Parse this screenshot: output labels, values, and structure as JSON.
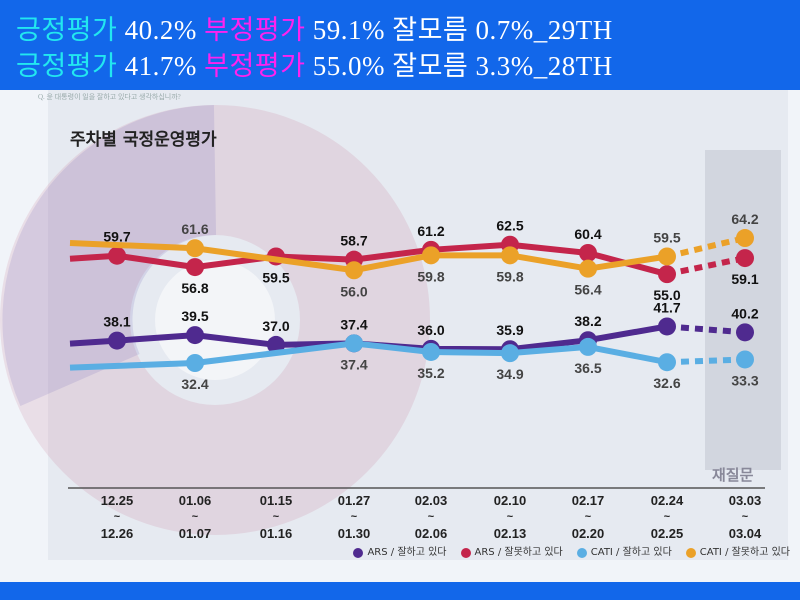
{
  "header": {
    "rows": [
      {
        "pos_label": "긍정평가",
        "pos_value": "40.2%",
        "neg_label": "부정평가",
        "neg_value": "59.1%",
        "dk_label": "잘모름",
        "dk_value": "0.7%_29TH"
      },
      {
        "pos_label": "긍정평가",
        "pos_value": "41.7%",
        "neg_label": "부정평가",
        "neg_value": "55.0%",
        "dk_label": "잘모름",
        "dk_value": "3.3%_28TH"
      }
    ]
  },
  "background_question": "Q. 윤 대통령이 일을 잘하고 있다고 생각하십니까?",
  "re_question_label": "재질문",
  "colors": {
    "header_bg": "#1267ea",
    "ars_good": "#4f2a8f",
    "ars_bad": "#c4254b",
    "cati_good": "#5aaee3",
    "cati_bad": "#eba128"
  },
  "chart_data": {
    "type": "line",
    "title": "주차별 국정운영평가",
    "categories": [
      {
        "top": "12.25",
        "bottom": "12.26"
      },
      {
        "top": "01.06",
        "bottom": "01.07"
      },
      {
        "top": "01.15",
        "bottom": "01.16"
      },
      {
        "top": "01.27",
        "bottom": "01.30"
      },
      {
        "top": "02.03",
        "bottom": "02.06"
      },
      {
        "top": "02.10",
        "bottom": "02.13"
      },
      {
        "top": "02.17",
        "bottom": "02.20"
      },
      {
        "top": "02.24",
        "bottom": "02.25"
      },
      {
        "top": "03.03",
        "bottom": "03.04"
      }
    ],
    "last_segment_style": "dashed",
    "series": [
      {
        "name": "ARS / 잘못하고 있다",
        "key": "ars_bad",
        "values": [
          59.7,
          56.8,
          59.5,
          58.7,
          61.2,
          62.5,
          60.4,
          55.0,
          59.1
        ],
        "labels": [
          "59.7",
          "56.8",
          "59.5",
          "58.7",
          "61.2",
          "62.5",
          "60.4",
          "55.0",
          "59.1"
        ]
      },
      {
        "name": "CATI / 잘못하고 있다",
        "key": "cati_bad",
        "values": [
          null,
          61.6,
          null,
          56.0,
          59.8,
          59.8,
          56.4,
          59.5,
          64.2
        ],
        "labels": [
          null,
          "61.6",
          null,
          "56.0",
          "59.8",
          "59.8",
          "56.4",
          "59.5",
          "64.2"
        ]
      },
      {
        "name": "ARS / 잘하고 있다",
        "key": "ars_good",
        "values": [
          38.1,
          39.5,
          37.0,
          37.4,
          36.0,
          35.9,
          38.2,
          41.7,
          40.2
        ],
        "labels": [
          "38.1",
          "39.5",
          "37.0",
          "37.4",
          "36.0",
          "35.9",
          "38.2",
          "41.7",
          "40.2"
        ]
      },
      {
        "name": "CATI / 잘하고 있다",
        "key": "cati_good",
        "values": [
          null,
          32.4,
          null,
          37.4,
          35.2,
          34.9,
          36.5,
          32.6,
          33.3
        ],
        "labels": [
          null,
          "32.4",
          null,
          "37.4",
          "35.2",
          "34.9",
          "36.5",
          "32.6",
          "33.3"
        ]
      }
    ],
    "legend": [
      {
        "label": "ARS / 잘하고 있다",
        "key": "ars_good"
      },
      {
        "label": "ARS / 잘못하고 있다",
        "key": "ars_bad"
      },
      {
        "label": "CATI / 잘하고 있다",
        "key": "cati_good"
      },
      {
        "label": "CATI / 잘못하고 있다",
        "key": "cati_bad"
      }
    ],
    "legend_position": "bottom-right",
    "grid": false
  }
}
